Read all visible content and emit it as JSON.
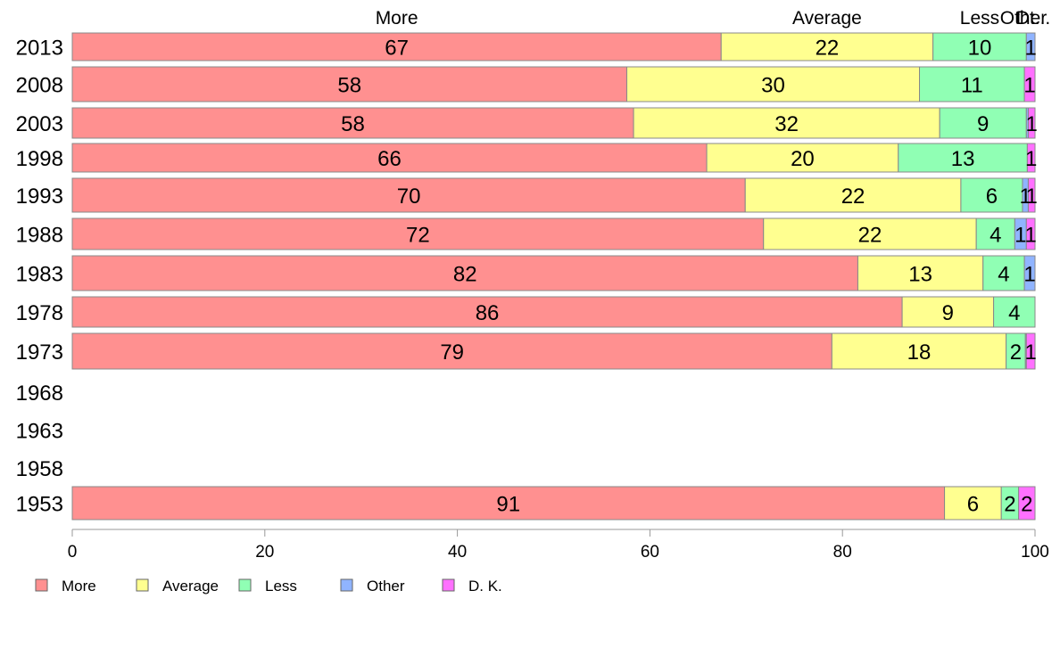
{
  "chart_data": {
    "type": "bar",
    "orientation": "horizontal",
    "stacked": true,
    "categories": [
      "2013",
      "2008",
      "2003",
      "1998",
      "1993",
      "1988",
      "1983",
      "1978",
      "1973",
      "1968",
      "1963",
      "1958",
      "1953"
    ],
    "series": [
      {
        "name": "More",
        "color": "#ff9090",
        "values": [
          67.4,
          57.6,
          58.3,
          65.9,
          69.9,
          71.8,
          81.6,
          86.2,
          78.9,
          null,
          null,
          null,
          90.6
        ],
        "labels": [
          "67",
          "58",
          "58",
          "66",
          "70",
          "72",
          "82",
          "86",
          "79",
          null,
          null,
          null,
          "91"
        ]
      },
      {
        "name": "Average",
        "color": "#ffff90",
        "values": [
          22.0,
          30.4,
          31.8,
          19.9,
          22.4,
          22.1,
          13.0,
          9.5,
          18.1,
          null,
          null,
          null,
          5.9
        ],
        "labels": [
          "22",
          "30",
          "32",
          "20",
          "22",
          "22",
          "13",
          "9",
          "18",
          null,
          null,
          null,
          "6"
        ]
      },
      {
        "name": "Less",
        "color": "#90ffb4",
        "values": [
          9.7,
          10.9,
          9.0,
          13.4,
          6.4,
          4.0,
          4.3,
          4.3,
          2.0,
          null,
          null,
          null,
          1.8
        ],
        "labels": [
          "10",
          "11",
          "9",
          "13",
          "6",
          "4",
          "4",
          "4",
          "2",
          null,
          null,
          null,
          "2"
        ]
      },
      {
        "name": "Other",
        "color": "#90b4ff",
        "values": [
          0.9,
          0,
          0.2,
          0,
          0.6,
          1.2,
          1.1,
          0,
          0.1,
          null,
          null,
          null,
          0
        ],
        "labels": [
          "1",
          null,
          null,
          null,
          "1",
          "1",
          "1",
          null,
          null,
          null,
          null,
          null,
          null
        ]
      },
      {
        "name": "D. K.",
        "color": "#ff70ff",
        "values": [
          0,
          1.1,
          0.7,
          0.8,
          0.7,
          0.9,
          0,
          0,
          0.9,
          null,
          null,
          null,
          1.7
        ],
        "labels": [
          null,
          "1",
          "1",
          "1",
          "1",
          "1",
          null,
          null,
          "1",
          null,
          null,
          null,
          "2"
        ]
      }
    ],
    "top_labels": [
      "More",
      "Average",
      "Less",
      "Other",
      "Dt..."
    ],
    "top_label_color_series": [
      0,
      1,
      2,
      3,
      4
    ],
    "xlim": [
      0,
      100
    ],
    "xticks": [
      "0",
      "20",
      "40",
      "60",
      "80",
      "100"
    ],
    "legend_position": "bottom-left",
    "grid": false
  }
}
